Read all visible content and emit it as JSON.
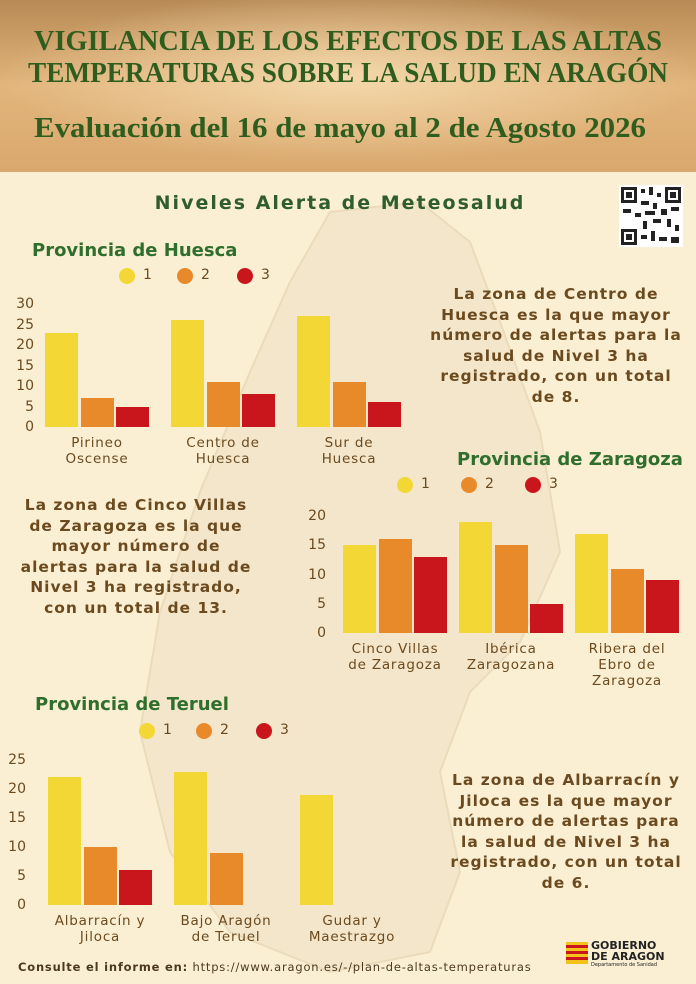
{
  "header": {
    "title_line1": "VIGILANCIA DE LOS EFECTOS DE LAS ALTAS",
    "title_line2": "TEMPERATURAS SOBRE LA SALUD EN ARAGÓN",
    "subtitle": "Evaluación del  16 de mayo al 2 de Agosto 2026"
  },
  "section_title": "Niveles Alerta de Meteosalud",
  "chart_data": [
    {
      "type": "bar",
      "title": "Provincia de Huesca",
      "categories": [
        "Pirineo\nOscense",
        "Centro de\nHuesca",
        "Sur de\nHuesca"
      ],
      "series": [
        {
          "name": "1",
          "color": "#f3d735",
          "values": [
            23,
            26,
            27
          ]
        },
        {
          "name": "2",
          "color": "#e88a2a",
          "values": [
            7,
            11,
            11
          ]
        },
        {
          "name": "3",
          "color": "#c8161c",
          "values": [
            5,
            8,
            6
          ]
        }
      ],
      "ylim": [
        0,
        30
      ],
      "yticks": [
        0,
        5,
        10,
        15,
        20,
        25,
        30
      ]
    },
    {
      "type": "bar",
      "title": "Provincia de Zaragoza",
      "categories": [
        "Cinco Villas\nde Zaragoza",
        "Ibérica\nZaragozana",
        "Ribera del\nEbro de\nZaragoza"
      ],
      "series": [
        {
          "name": "1",
          "color": "#f3d735",
          "values": [
            15,
            19,
            17
          ]
        },
        {
          "name": "2",
          "color": "#e88a2a",
          "values": [
            16,
            15,
            11
          ]
        },
        {
          "name": "3",
          "color": "#c8161c",
          "values": [
            13,
            5,
            9
          ]
        }
      ],
      "ylim": [
        0,
        20
      ],
      "yticks": [
        0,
        5,
        10,
        15,
        20
      ]
    },
    {
      "type": "bar",
      "title": "Provincia de Teruel",
      "categories": [
        "Albarracín y\nJiloca",
        "Bajo Aragón\nde Teruel",
        "Gudar y\nMaestrazgo"
      ],
      "series": [
        {
          "name": "1",
          "color": "#f3d735",
          "values": [
            22,
            23,
            19
          ]
        },
        {
          "name": "2",
          "color": "#e88a2a",
          "values": [
            10,
            9,
            0
          ]
        },
        {
          "name": "3",
          "color": "#c8161c",
          "values": [
            6,
            0,
            0
          ]
        }
      ],
      "ylim": [
        0,
        25
      ],
      "yticks": [
        0,
        5,
        10,
        15,
        20,
        25
      ]
    }
  ],
  "notes": [
    "La zona de Centro de Huesca es la que mayor número de alertas para la salud de Nivel 3 ha registrado, con un total de 8.",
    "La zona de Cinco Villas de Zaragoza es la que mayor número de alertas para la salud de Nivel 3 ha registrado, con un total de 13.",
    "La zona de Albarracín y Jiloca es la que mayor número de alertas para la salud de Nivel 3 ha registrado, con un total de 6."
  ],
  "footer": {
    "label": "Consulte el informe en:",
    "url": "https://www.aragon.es/-/plan-de-altas-temperaturas"
  },
  "logo": {
    "line1": "GOBIERNO",
    "line2": "DE ARAGON",
    "department": "Departamento de Sanidad"
  }
}
